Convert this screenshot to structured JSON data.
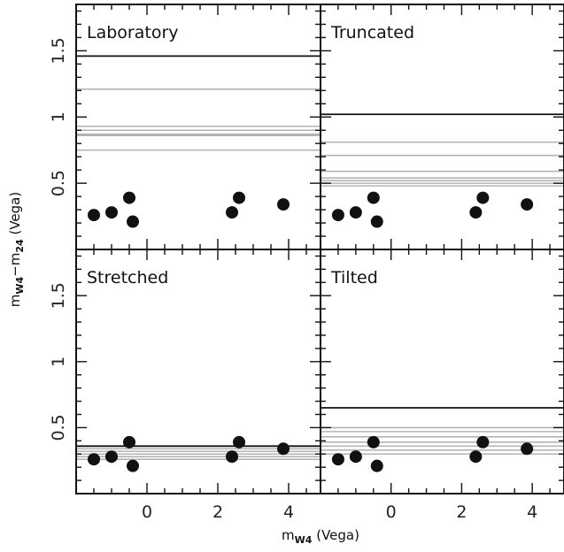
{
  "chart_data": {
    "type": "scatter",
    "layout": "2x2 panels, shared axes",
    "xlabel": {
      "main": "m",
      "sub": "W4",
      "rest": " (Vega)"
    },
    "ylabel": {
      "main1": "m",
      "sub1": "W4",
      "mid": "−m",
      "sub2": "24",
      "rest": " (Vega)"
    },
    "xlim": [
      -2.0,
      4.9
    ],
    "ylim": [
      0.0,
      1.85
    ],
    "x_ticks": [
      0,
      2,
      4
    ],
    "x_tick_labels": [
      "0",
      "2",
      "4"
    ],
    "y_ticks": [
      0.5,
      1.0,
      1.5
    ],
    "y_tick_labels": [
      "0.5",
      "1",
      "1.5"
    ],
    "grid": false,
    "points": {
      "x": [
        -1.5,
        -1.0,
        -0.5,
        -0.4,
        2.4,
        2.6,
        3.85
      ],
      "y": [
        0.26,
        0.28,
        0.39,
        0.21,
        0.28,
        0.39,
        0.34
      ]
    },
    "panels": [
      {
        "title": "Laboratory",
        "black_line": 1.46,
        "gray_lines": [
          1.21,
          0.93,
          0.9,
          0.87,
          0.86,
          0.75
        ]
      },
      {
        "title": "Truncated",
        "black_line": 1.02,
        "gray_lines": [
          0.81,
          0.71,
          0.59,
          0.54,
          0.52,
          0.5,
          0.48
        ]
      },
      {
        "title": "Stretched",
        "black_line": 0.36,
        "gray_lines": [
          0.34,
          0.32,
          0.3,
          0.28,
          0.26
        ]
      },
      {
        "title": "Tilted",
        "black_line": 0.65,
        "gray_lines": [
          0.5,
          0.47,
          0.43,
          0.39,
          0.36,
          0.33,
          0.3
        ]
      }
    ],
    "colors": {
      "points": "#111111",
      "black_line": "#111111",
      "gray_line": "#b4b4b4",
      "frame": "#111111"
    }
  }
}
